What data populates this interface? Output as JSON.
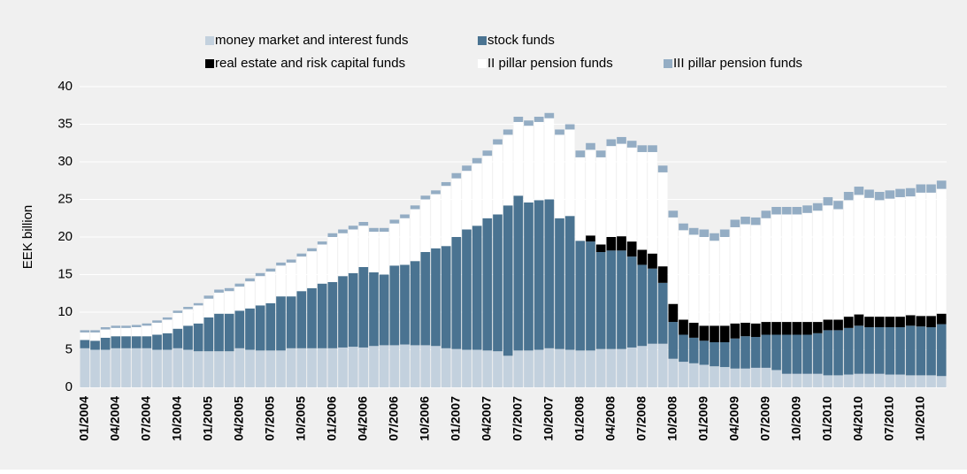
{
  "chart_data": {
    "type": "stacked_bar",
    "y_label": "EEK billion",
    "categories": [
      "01/2004",
      null,
      null,
      "04/2004",
      null,
      null,
      "07/2004",
      null,
      null,
      "10/2004",
      null,
      null,
      "01/2005",
      null,
      null,
      "04/2005",
      null,
      null,
      "07/2005",
      null,
      null,
      "10/2005",
      null,
      null,
      "01/2006",
      null,
      null,
      "04/2006",
      null,
      null,
      "07/2006",
      null,
      null,
      "10/2006",
      null,
      null,
      "01/2007",
      null,
      null,
      "04/2007",
      null,
      null,
      "07/2007",
      null,
      null,
      "10/2007",
      null,
      null,
      "01/2008",
      null,
      null,
      "04/2008",
      null,
      null,
      "07/2008",
      null,
      null,
      "10/2008",
      null,
      null,
      "01/2009",
      null,
      null,
      "04/2009",
      null,
      null,
      "07/2009",
      null,
      null,
      "10/2009",
      null,
      null,
      "01/2010",
      null,
      null,
      "04/2010",
      null,
      null,
      "07/2010",
      null,
      null,
      "10/2010",
      null,
      null
    ],
    "series": [
      {
        "name": "money market and interest funds",
        "color": "#c3d1de",
        "values": [
          5.2,
          5.0,
          5.0,
          5.2,
          5.2,
          5.2,
          5.2,
          5.0,
          5.0,
          5.2,
          5.0,
          4.8,
          4.8,
          4.8,
          4.8,
          5.2,
          5.0,
          4.9,
          4.9,
          4.9,
          5.2,
          5.2,
          5.2,
          5.2,
          5.2,
          5.3,
          5.4,
          5.3,
          5.5,
          5.6,
          5.6,
          5.7,
          5.6,
          5.6,
          5.5,
          5.2,
          5.1,
          5.0,
          5.0,
          4.9,
          4.8,
          4.2,
          4.9,
          4.9,
          5.0,
          5.2,
          5.1,
          5.0,
          4.9,
          4.9,
          5.1,
          5.1,
          5.1,
          5.3,
          5.5,
          5.8,
          5.8,
          3.8,
          3.4,
          3.2,
          3.0,
          2.8,
          2.7,
          2.5,
          2.5,
          2.6,
          2.6,
          2.3,
          1.8,
          1.8,
          1.8,
          1.8,
          1.6,
          1.6,
          1.7,
          1.8,
          1.8,
          1.8,
          1.7,
          1.7,
          1.6,
          1.6,
          1.6,
          1.5
        ]
      },
      {
        "name": "stock funds",
        "color": "#4a7391",
        "values": [
          1.1,
          1.2,
          1.6,
          1.6,
          1.6,
          1.6,
          1.6,
          2.0,
          2.2,
          2.6,
          3.2,
          3.7,
          4.5,
          5.0,
          5.0,
          5.0,
          5.5,
          6.0,
          6.3,
          7.2,
          6.9,
          7.6,
          8.0,
          8.6,
          8.8,
          9.5,
          9.8,
          10.7,
          9.8,
          9.4,
          10.6,
          10.6,
          11.2,
          12.4,
          13.0,
          13.6,
          14.9,
          16.0,
          16.5,
          17.6,
          18.2,
          20.0,
          20.6,
          19.7,
          19.9,
          19.8,
          17.4,
          17.8,
          14.6,
          14.5,
          12.9,
          13.1,
          13.1,
          12.1,
          10.8,
          10.0,
          8.1,
          4.9,
          3.6,
          3.4,
          3.2,
          3.2,
          3.3,
          4.0,
          4.3,
          4.1,
          4.4,
          4.7,
          5.2,
          5.2,
          5.2,
          5.4,
          6.0,
          6.0,
          6.2,
          6.4,
          6.2,
          6.2,
          6.3,
          6.3,
          6.6,
          6.5,
          6.4,
          6.9
        ]
      },
      {
        "name": "real estate and risk capital funds",
        "color": "#000000",
        "values": [
          0,
          0,
          0,
          0,
          0,
          0,
          0,
          0,
          0,
          0,
          0,
          0,
          0,
          0,
          0,
          0,
          0,
          0,
          0,
          0,
          0,
          0,
          0,
          0,
          0,
          0,
          0,
          0,
          0,
          0,
          0,
          0,
          0,
          0,
          0,
          0,
          0,
          0,
          0,
          0,
          0,
          0,
          0,
          0,
          0,
          0,
          0,
          0,
          0,
          0.8,
          1.0,
          1.8,
          1.9,
          2.0,
          2.0,
          2.0,
          2.2,
          2.4,
          2.0,
          2.0,
          2.0,
          2.2,
          2.2,
          2.0,
          1.8,
          1.8,
          1.7,
          1.7,
          1.7,
          1.7,
          1.7,
          1.5,
          1.4,
          1.4,
          1.5,
          1.5,
          1.4,
          1.4,
          1.4,
          1.4,
          1.4,
          1.4,
          1.5,
          1.4
        ]
      },
      {
        "name": "II pillar pension funds",
        "color": "#ffffff",
        "values": [
          1.0,
          1.1,
          1.1,
          1.1,
          1.1,
          1.2,
          1.4,
          1.6,
          1.8,
          2.1,
          2.2,
          2.4,
          2.5,
          2.8,
          3.0,
          3.2,
          3.6,
          3.9,
          4.2,
          4.1,
          4.5,
          4.6,
          4.9,
          5.2,
          6.0,
          5.7,
          5.8,
          5.5,
          5.4,
          5.7,
          5.6,
          6.2,
          6.9,
          7.0,
          7.2,
          8.0,
          7.8,
          7.8,
          8.3,
          8.3,
          9.3,
          9.4,
          9.8,
          10.2,
          10.4,
          10.8,
          11.1,
          11.5,
          11.1,
          11.4,
          11.6,
          12.1,
          12.3,
          12.5,
          13.0,
          13.5,
          12.5,
          11.5,
          11.9,
          11.7,
          11.8,
          11.3,
          11.8,
          12.8,
          13.1,
          13.1,
          13.8,
          14.3,
          14.3,
          14.3,
          14.5,
          14.8,
          15.2,
          14.7,
          15.5,
          15.9,
          15.8,
          15.5,
          15.7,
          15.9,
          15.8,
          16.4,
          16.4,
          16.6
        ]
      },
      {
        "name": "III pillar pension funds",
        "color": "#94adc4",
        "values": [
          0.3,
          0.3,
          0.3,
          0.3,
          0.3,
          0.3,
          0.3,
          0.3,
          0.3,
          0.3,
          0.3,
          0.3,
          0.4,
          0.4,
          0.4,
          0.4,
          0.4,
          0.4,
          0.4,
          0.4,
          0.4,
          0.4,
          0.4,
          0.4,
          0.5,
          0.5,
          0.5,
          0.5,
          0.5,
          0.5,
          0.5,
          0.5,
          0.5,
          0.5,
          0.5,
          0.5,
          0.7,
          0.7,
          0.7,
          0.7,
          0.7,
          0.7,
          0.7,
          0.7,
          0.7,
          0.7,
          0.7,
          0.7,
          0.9,
          0.9,
          0.9,
          0.9,
          0.9,
          0.9,
          0.9,
          0.9,
          0.9,
          0.9,
          0.9,
          0.9,
          1.0,
          1.0,
          1.0,
          1.0,
          1.0,
          1.0,
          1.0,
          1.0,
          1.0,
          1.0,
          1.0,
          1.0,
          1.1,
          1.1,
          1.1,
          1.1,
          1.1,
          1.1,
          1.1,
          1.1,
          1.1,
          1.1,
          1.1,
          1.1
        ]
      }
    ],
    "ylim": [
      0,
      40
    ],
    "yticks": [
      0,
      5,
      10,
      15,
      20,
      25,
      30,
      35,
      40
    ],
    "grid": true
  }
}
